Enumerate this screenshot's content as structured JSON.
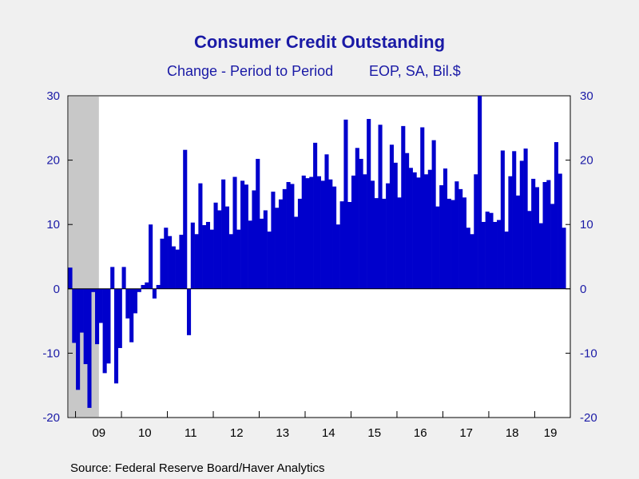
{
  "chart_data": {
    "type": "bar",
    "title": "Consumer Credit Outstanding",
    "subtitle_left": "Change - Period to Period",
    "subtitle_right": "EOP, SA, Bil.$",
    "source": "Source:  Federal Reserve Board/Haver Analytics",
    "ylim": [
      -20,
      30
    ],
    "y_ticks": [
      -20,
      -10,
      0,
      10,
      20,
      30
    ],
    "x_ticks": [
      "09",
      "10",
      "11",
      "12",
      "13",
      "14",
      "15",
      "16",
      "17",
      "18",
      "19"
    ],
    "recession_shading": {
      "start": "2008-11",
      "end": "2009-06"
    },
    "bar_color": "#0000cc",
    "recession_color": "#c8c8c8",
    "grid": false,
    "series": [
      {
        "start": "2008-11",
        "frequency": "monthly",
        "values": [
          3.3,
          -8.4,
          -15.7,
          -6.8,
          -11.7,
          -18.5,
          -0.5,
          -8.6,
          -5.3,
          -13.1,
          -11.6,
          3.4,
          -14.7,
          -9.2,
          3.4,
          -4.6,
          -8.3,
          -3.8,
          -0.5,
          0.6,
          1.0,
          10.0,
          -1.5,
          0.6,
          7.8,
          9.5,
          8.2,
          6.6,
          6.1,
          8.4,
          21.6,
          -7.2,
          10.3,
          8.5,
          16.4,
          9.9,
          10.4,
          9.2,
          13.4,
          12.2,
          17.0,
          12.8,
          8.5,
          17.4,
          9.2,
          16.8,
          16.2,
          10.6,
          15.3,
          20.2,
          10.9,
          12.2,
          8.9,
          15.1,
          12.6,
          13.9,
          15.5,
          16.6,
          16.3,
          11.2,
          14.0,
          17.6,
          17.2,
          17.4,
          22.7,
          17.5,
          16.8,
          20.9,
          17.0,
          15.9,
          10.0,
          13.6,
          26.3,
          13.5,
          17.6,
          21.9,
          20.2,
          17.8,
          26.4,
          16.8,
          14.1,
          25.5,
          14.0,
          16.4,
          22.4,
          19.6,
          14.2,
          25.3,
          21.1,
          18.8,
          18.1,
          17.3,
          25.1,
          17.8,
          18.5,
          23.1,
          12.8,
          16.1,
          18.7,
          14.0,
          13.8,
          16.7,
          15.5,
          14.2,
          9.5,
          8.5,
          17.8,
          30.0,
          10.4,
          12.0,
          11.8,
          10.4,
          10.7,
          21.5,
          8.9,
          17.5,
          21.4,
          14.5,
          19.9,
          21.8,
          12.1,
          17.1,
          15.8,
          10.2,
          16.6,
          16.9,
          13.2,
          22.8,
          17.9,
          9.5
        ]
      }
    ]
  }
}
